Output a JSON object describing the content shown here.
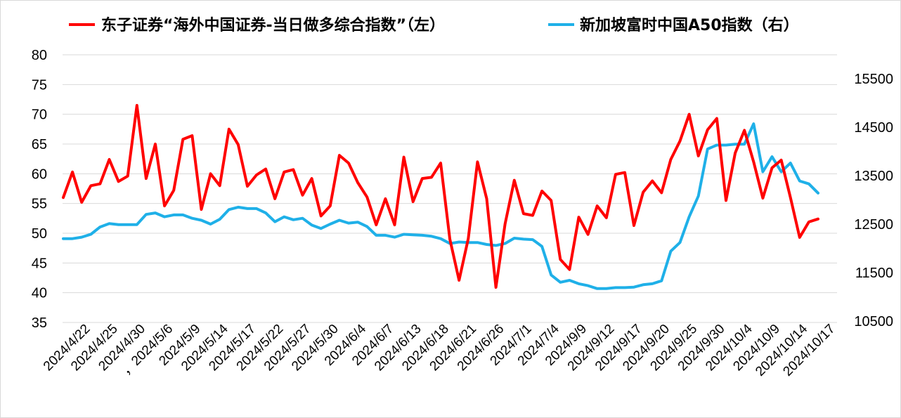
{
  "chart_data": {
    "type": "line",
    "legend_position": "top",
    "grid": true,
    "series": [
      {
        "name": "东子证券“海外中国证券-当日做多综合指数”（左）",
        "axis": "left",
        "color": "#ff0000",
        "values": [
          56.0,
          60.3,
          55.2,
          58.0,
          58.3,
          62.4,
          58.7,
          59.6,
          71.5,
          59.2,
          65.0,
          54.6,
          57.2,
          65.8,
          66.4,
          54.0,
          60.0,
          58.0,
          67.5,
          64.9,
          57.9,
          59.8,
          60.8,
          55.8,
          60.3,
          60.7,
          56.4,
          59.2,
          52.9,
          54.6,
          63.1,
          61.8,
          58.5,
          56.1,
          51.4,
          55.8,
          51.4,
          62.8,
          55.3,
          59.2,
          59.4,
          61.8,
          49.0,
          42.1,
          49.1,
          62.0,
          55.8,
          40.9,
          51.6,
          58.9,
          53.3,
          53.0,
          57.1,
          55.5,
          45.6,
          43.9,
          52.7,
          49.8,
          54.6,
          52.6,
          59.9,
          60.2,
          51.3,
          56.9,
          58.8,
          56.8,
          62.4,
          65.5,
          70.0,
          63.0,
          67.4,
          69.3,
          55.5,
          63.5,
          67.3,
          62.0,
          55.9,
          61.0,
          62.3,
          56.0,
          49.3,
          51.9,
          52.4
        ],
        "x_start_index": 0
      },
      {
        "name": "新加坡富时中国A50指数（右）",
        "axis": "right",
        "color": "#1fb0e8",
        "values": [
          12200,
          12200,
          12230,
          12290,
          12440,
          12510,
          12490,
          12490,
          12490,
          12700,
          12730,
          12650,
          12690,
          12690,
          12620,
          12580,
          12500,
          12600,
          12800,
          12850,
          12820,
          12820,
          12730,
          12550,
          12650,
          12590,
          12620,
          12480,
          12410,
          12500,
          12580,
          12520,
          12540,
          12450,
          12270,
          12270,
          12230,
          12290,
          12280,
          12270,
          12250,
          12200,
          12100,
          12130,
          12120,
          12120,
          12080,
          12060,
          12100,
          12210,
          12190,
          12180,
          12040,
          11450,
          11300,
          11340,
          11270,
          11230,
          11170,
          11170,
          11190,
          11190,
          11200,
          11250,
          11270,
          11330,
          11940,
          12120,
          12650,
          13080,
          14050,
          14130,
          14130,
          14150,
          14150,
          14570,
          13580,
          13890,
          13580,
          13760,
          13390,
          13330,
          13140
        ],
        "x_start_index": 0
      }
    ],
    "num_points": 83,
    "x_tick_labels": [
      "2024/4/22",
      "2024/4/25",
      "2024/4/30",
      "，2024/5/6",
      "2024/5/9",
      "2024/5/14",
      "2024/5/17",
      "2024/5/22",
      "2024/5/27",
      "2024/5/30",
      "2024/6/4",
      "2024/6/7",
      "2024/6/13",
      "2024/6/18",
      "2024/6/21",
      "2024/6/26",
      "2024/7/1",
      "2024/7/4",
      "2024/9/9",
      "2024/9/12",
      "2024/9/17",
      "2024/9/20",
      "2024/9/25",
      "2024/9/30",
      "2024/10/4",
      "2024/10/9",
      "2024/10/14",
      "2024/10/17"
    ],
    "left_axis": {
      "min": 35,
      "max": 80,
      "ticks": [
        "35",
        "40",
        "45",
        "50",
        "55",
        "60",
        "65",
        "70",
        "75",
        "80"
      ]
    },
    "right_axis": {
      "min": 10500,
      "max": 15500,
      "ticks": [
        "10500",
        "11500",
        "12500",
        "13500",
        "14500",
        "15500"
      ]
    },
    "title": "",
    "xlabel": "",
    "ylabel": ""
  }
}
